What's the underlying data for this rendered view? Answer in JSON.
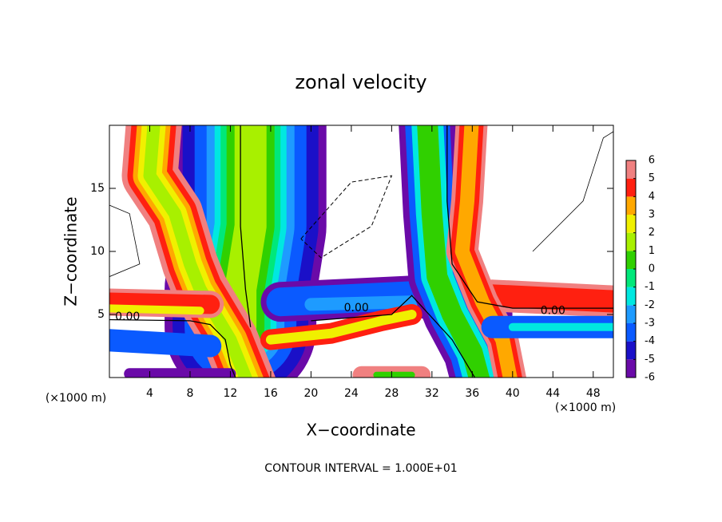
{
  "chart_data": {
    "type": "contourf",
    "title": "zonal velocity",
    "xlabel": "X−coordinate",
    "ylabel": "Z−coordinate",
    "x_unit": "(×1000 m)",
    "footer": "CONTOUR INTERVAL = 1.000E+01",
    "contour_labels": [
      "0.00",
      "0.00",
      "0.00"
    ],
    "xlim": [
      0,
      50
    ],
    "xticks": [
      4,
      8,
      12,
      16,
      20,
      24,
      28,
      32,
      36,
      40,
      44,
      48
    ],
    "ylim": [
      0,
      20
    ],
    "yticks": [
      5,
      10,
      15
    ],
    "levels": [
      -6,
      -5,
      -4,
      -3,
      -2,
      -1,
      0,
      1,
      2,
      3,
      4,
      5,
      6
    ],
    "colors": [
      "#6a0aa8",
      "#1a10c8",
      "#0a5aff",
      "#1e9bff",
      "#00e8e0",
      "#00e87a",
      "#30d000",
      "#a8f000",
      "#f0f000",
      "#ffa800",
      "#ff2010",
      "#f08080"
    ]
  }
}
